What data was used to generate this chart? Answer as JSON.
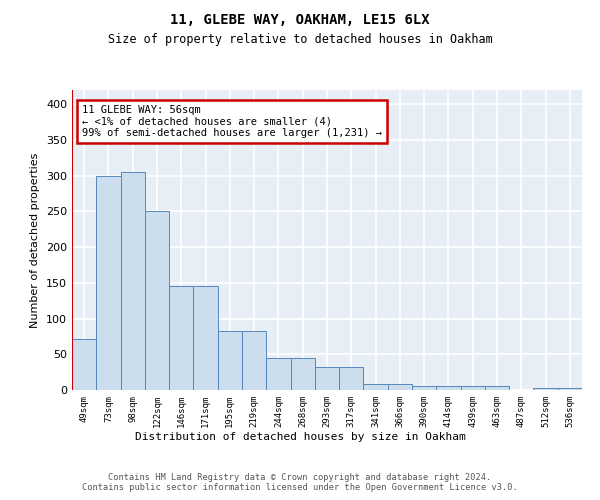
{
  "title1": "11, GLEBE WAY, OAKHAM, LE15 6LX",
  "title2": "Size of property relative to detached houses in Oakham",
  "xlabel": "Distribution of detached houses by size in Oakham",
  "ylabel": "Number of detached properties",
  "categories": [
    "49sqm",
    "73sqm",
    "98sqm",
    "122sqm",
    "146sqm",
    "171sqm",
    "195sqm",
    "219sqm",
    "244sqm",
    "268sqm",
    "293sqm",
    "317sqm",
    "341sqm",
    "366sqm",
    "390sqm",
    "414sqm",
    "439sqm",
    "463sqm",
    "487sqm",
    "512sqm",
    "536sqm"
  ],
  "bar_heights": [
    72,
    300,
    305,
    250,
    145,
    145,
    83,
    83,
    45,
    45,
    32,
    32,
    8,
    8,
    5,
    5,
    5,
    5,
    0,
    3,
    3
  ],
  "bar_color": "#ccdded",
  "bar_edge_color": "#5588bb",
  "vline_color": "#cc0000",
  "annotation_text": "11 GLEBE WAY: 56sqm\n← <1% of detached houses are smaller (4)\n99% of semi-detached houses are larger (1,231) →",
  "ylim": [
    0,
    420
  ],
  "yticks": [
    0,
    50,
    100,
    150,
    200,
    250,
    300,
    350,
    400
  ],
  "footer": "Contains HM Land Registry data © Crown copyright and database right 2024.\nContains public sector information licensed under the Open Government Licence v3.0.",
  "plot_bg_color": "#e8eef5",
  "grid_color": "#ffffff"
}
